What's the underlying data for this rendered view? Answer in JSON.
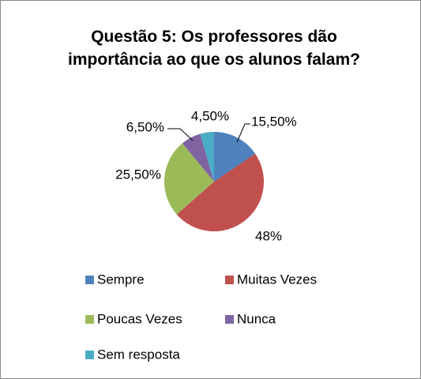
{
  "chart_data": {
    "type": "pie",
    "title": "Questão 5: Os professores  dão importância ao que os alunos falam?",
    "categories": [
      "Sempre",
      "Muitas Vezes",
      "Poucas Vezes",
      "Nunca",
      "Sem resposta"
    ],
    "values": [
      15.5,
      48,
      25.5,
      6.5,
      4.5
    ],
    "value_labels": [
      "15,50%",
      "48%",
      "25,50%",
      "6,50%",
      "4,50%"
    ],
    "colors": [
      "#4f81bd",
      "#c0504d",
      "#9bbb59",
      "#8064a2",
      "#4bacc6"
    ],
    "legend": "bottom"
  }
}
